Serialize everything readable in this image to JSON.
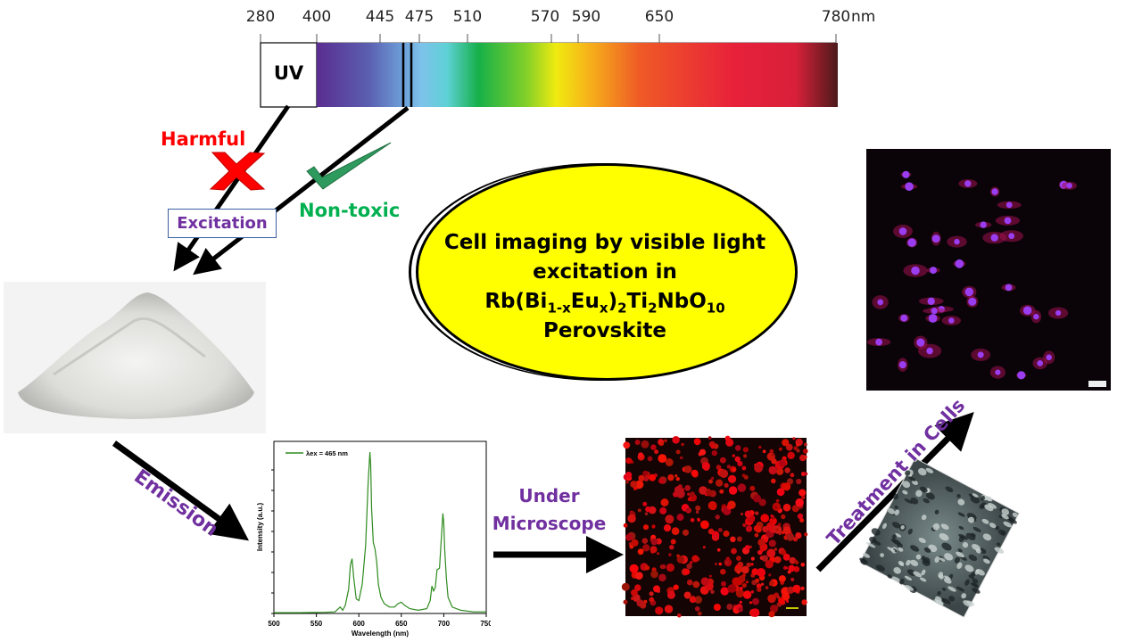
{
  "spectrum": {
    "ticks": [
      "280",
      "400",
      "445",
      "475",
      "510",
      "570",
      "590",
      "650",
      "780"
    ],
    "unit": "nm",
    "uv_label": "UV"
  },
  "labels": {
    "harmful": "Harmful",
    "excitation": "Excitation",
    "non_toxic": "Non-toxic",
    "emission": "Emission",
    "under_microscope_1": "Under",
    "under_microscope_2": "Microscope",
    "treatment": "Treatment in Cells"
  },
  "title": {
    "line1": "Cell imaging by visible light",
    "line2": "excitation in",
    "formula_parts": [
      "Rb(Bi",
      "1-x",
      "Eu",
      "x",
      ")",
      "2",
      "Ti",
      "2",
      "NbO",
      "10"
    ],
    "line4": "Perovskite"
  },
  "colors": {
    "harmful": "#ff0000",
    "non_toxic": "#00b050",
    "purple": "#7030a0",
    "ellipse": "#ffff00",
    "spectrum_line": "#2e8b1e"
  },
  "chart_data": {
    "type": "line",
    "legend": "λex = 465 nm",
    "xlabel": "Wavelength (nm)",
    "ylabel": "Intensity (a.u.)",
    "xlim": [
      500,
      750
    ],
    "xticks": [
      "500",
      "550",
      "600",
      "650",
      "700",
      "750"
    ],
    "series": [
      {
        "name": "λex = 465 nm",
        "x": [
          500,
          530,
          560,
          572,
          578,
          581,
          584,
          588,
          590,
          592,
          594,
          597,
          600,
          604,
          608,
          611,
          613,
          614,
          615,
          617,
          619,
          621,
          623,
          626,
          630,
          636,
          642,
          646,
          650,
          654,
          660,
          670,
          680,
          684,
          686,
          688,
          690,
          692,
          695,
          697,
          699,
          700,
          701,
          703,
          705,
          710,
          720,
          735,
          750
        ],
        "y": [
          0.5,
          0.5,
          0.7,
          1,
          4,
          2,
          5,
          15,
          30,
          34,
          22,
          9,
          8,
          18,
          42,
          82,
          100,
          92,
          65,
          44,
          40,
          32,
          18,
          10,
          6,
          4,
          4,
          6,
          7,
          5,
          3,
          2,
          3,
          8,
          17,
          14,
          16,
          27,
          28,
          45,
          62,
          56,
          40,
          22,
          10,
          4,
          2,
          1,
          1
        ]
      }
    ]
  }
}
